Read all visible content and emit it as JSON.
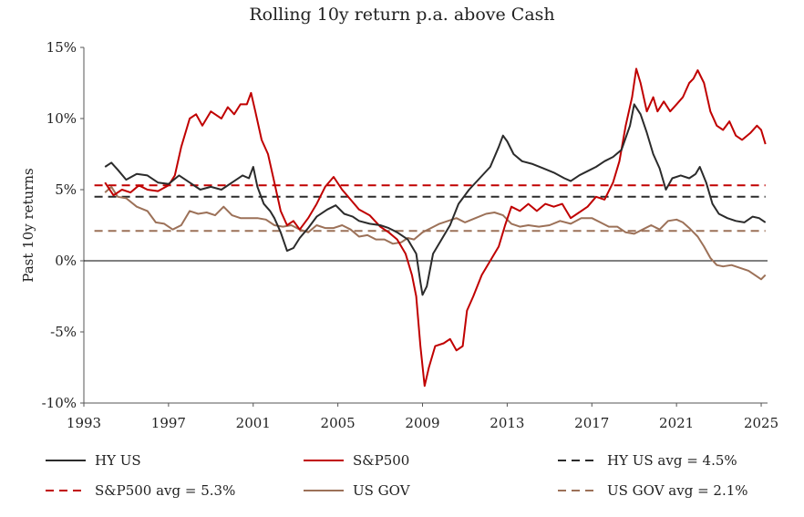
{
  "chart_data": {
    "type": "line",
    "title": "Rolling 10y return p.a. above Cash",
    "xlabel": "",
    "ylabel": "Past 10y returns",
    "xlim": [
      1993,
      2025.3
    ],
    "ylim": [
      -10,
      15
    ],
    "x_ticks": [
      1993,
      1997,
      2001,
      2005,
      2009,
      2013,
      2017,
      2021,
      2025
    ],
    "x_tick_labels": [
      "1993",
      "1997",
      "2001",
      "2005",
      "2009",
      "2013",
      "2017",
      "2021",
      "2025"
    ],
    "y_ticks": [
      -10,
      -5,
      0,
      5,
      10,
      15
    ],
    "y_tick_labels": [
      "-10%",
      "-5%",
      "0%",
      "5%",
      "10%",
      "15%"
    ],
    "grid": false,
    "legend": "bottom",
    "colors": {
      "hy_us": "#2b2b2b",
      "sp500": "#c00000",
      "us_gov": "#9c7158",
      "zero_line": "#000000",
      "axis": "#555555"
    },
    "series": [
      {
        "name": "HY US",
        "key": "hy_us",
        "style": "solid",
        "points": [
          [
            1994.0,
            6.6
          ],
          [
            1994.3,
            6.9
          ],
          [
            1994.6,
            6.4
          ],
          [
            1995.0,
            5.7
          ],
          [
            1995.5,
            6.1
          ],
          [
            1996.0,
            6.0
          ],
          [
            1996.5,
            5.5
          ],
          [
            1997.0,
            5.4
          ],
          [
            1997.5,
            6.0
          ],
          [
            1998.0,
            5.5
          ],
          [
            1998.5,
            5.0
          ],
          [
            1999.0,
            5.2
          ],
          [
            1999.5,
            5.0
          ],
          [
            2000.0,
            5.5
          ],
          [
            2000.5,
            6.0
          ],
          [
            2000.8,
            5.8
          ],
          [
            2001.0,
            6.6
          ],
          [
            2001.2,
            5.2
          ],
          [
            2001.5,
            4.0
          ],
          [
            2001.8,
            3.5
          ],
          [
            2002.0,
            3.0
          ],
          [
            2002.3,
            2.0
          ],
          [
            2002.6,
            0.7
          ],
          [
            2002.9,
            0.9
          ],
          [
            2003.2,
            1.6
          ],
          [
            2003.6,
            2.3
          ],
          [
            2004.0,
            3.1
          ],
          [
            2004.5,
            3.6
          ],
          [
            2004.9,
            3.9
          ],
          [
            2005.3,
            3.3
          ],
          [
            2005.7,
            3.1
          ],
          [
            2006.0,
            2.8
          ],
          [
            2006.5,
            2.6
          ],
          [
            2007.0,
            2.5
          ],
          [
            2007.4,
            2.3
          ],
          [
            2007.8,
            2.0
          ],
          [
            2008.3,
            1.5
          ],
          [
            2008.7,
            0.5
          ],
          [
            2008.9,
            -1.5
          ],
          [
            2009.0,
            -2.4
          ],
          [
            2009.2,
            -1.8
          ],
          [
            2009.5,
            0.5
          ],
          [
            2009.9,
            1.5
          ],
          [
            2010.3,
            2.5
          ],
          [
            2010.7,
            4.0
          ],
          [
            2011.2,
            5.0
          ],
          [
            2011.7,
            5.8
          ],
          [
            2012.2,
            6.6
          ],
          [
            2012.6,
            8.0
          ],
          [
            2012.8,
            8.8
          ],
          [
            2013.0,
            8.4
          ],
          [
            2013.3,
            7.5
          ],
          [
            2013.7,
            7.0
          ],
          [
            2014.2,
            6.8
          ],
          [
            2014.7,
            6.5
          ],
          [
            2015.2,
            6.2
          ],
          [
            2015.7,
            5.8
          ],
          [
            2016.0,
            5.6
          ],
          [
            2016.4,
            6.0
          ],
          [
            2016.8,
            6.3
          ],
          [
            2017.2,
            6.6
          ],
          [
            2017.6,
            7.0
          ],
          [
            2018.0,
            7.3
          ],
          [
            2018.4,
            7.8
          ],
          [
            2018.8,
            9.5
          ],
          [
            2019.0,
            11.0
          ],
          [
            2019.3,
            10.3
          ],
          [
            2019.6,
            9.0
          ],
          [
            2019.9,
            7.5
          ],
          [
            2020.2,
            6.5
          ],
          [
            2020.5,
            5.0
          ],
          [
            2020.8,
            5.8
          ],
          [
            2021.2,
            6.0
          ],
          [
            2021.6,
            5.8
          ],
          [
            2021.9,
            6.1
          ],
          [
            2022.1,
            6.6
          ],
          [
            2022.4,
            5.5
          ],
          [
            2022.7,
            4.0
          ],
          [
            2023.0,
            3.3
          ],
          [
            2023.4,
            3.0
          ],
          [
            2023.8,
            2.8
          ],
          [
            2024.2,
            2.7
          ],
          [
            2024.6,
            3.1
          ],
          [
            2024.9,
            3.0
          ],
          [
            2025.2,
            2.7
          ]
        ]
      },
      {
        "name": "S&P500",
        "key": "sp500",
        "style": "solid",
        "points": [
          [
            1994.0,
            5.5
          ],
          [
            1994.4,
            4.6
          ],
          [
            1994.8,
            5.0
          ],
          [
            1995.2,
            4.8
          ],
          [
            1995.6,
            5.3
          ],
          [
            1996.0,
            5.0
          ],
          [
            1996.5,
            4.9
          ],
          [
            1997.0,
            5.3
          ],
          [
            1997.3,
            6.0
          ],
          [
            1997.6,
            8.0
          ],
          [
            1998.0,
            10.0
          ],
          [
            1998.3,
            10.3
          ],
          [
            1998.6,
            9.5
          ],
          [
            1999.0,
            10.5
          ],
          [
            1999.5,
            10.0
          ],
          [
            1999.8,
            10.8
          ],
          [
            2000.1,
            10.3
          ],
          [
            2000.4,
            11.0
          ],
          [
            2000.7,
            11.0
          ],
          [
            2000.9,
            11.8
          ],
          [
            2001.1,
            10.5
          ],
          [
            2001.4,
            8.5
          ],
          [
            2001.7,
            7.5
          ],
          [
            2002.0,
            5.5
          ],
          [
            2002.3,
            3.5
          ],
          [
            2002.6,
            2.5
          ],
          [
            2002.9,
            2.8
          ],
          [
            2003.2,
            2.2
          ],
          [
            2003.6,
            3.0
          ],
          [
            2004.0,
            4.0
          ],
          [
            2004.4,
            5.2
          ],
          [
            2004.8,
            5.9
          ],
          [
            2005.2,
            5.0
          ],
          [
            2005.6,
            4.3
          ],
          [
            2006.0,
            3.6
          ],
          [
            2006.5,
            3.2
          ],
          [
            2007.0,
            2.4
          ],
          [
            2007.4,
            2.0
          ],
          [
            2007.8,
            1.5
          ],
          [
            2008.2,
            0.5
          ],
          [
            2008.5,
            -1.0
          ],
          [
            2008.7,
            -2.5
          ],
          [
            2008.9,
            -6.0
          ],
          [
            2009.1,
            -8.8
          ],
          [
            2009.3,
            -7.5
          ],
          [
            2009.6,
            -6.0
          ],
          [
            2010.0,
            -5.8
          ],
          [
            2010.3,
            -5.5
          ],
          [
            2010.6,
            -6.3
          ],
          [
            2010.9,
            -6.0
          ],
          [
            2011.1,
            -3.5
          ],
          [
            2011.4,
            -2.5
          ],
          [
            2011.8,
            -1.0
          ],
          [
            2012.2,
            0.0
          ],
          [
            2012.6,
            1.0
          ],
          [
            2012.9,
            2.5
          ],
          [
            2013.2,
            3.8
          ],
          [
            2013.6,
            3.5
          ],
          [
            2014.0,
            4.0
          ],
          [
            2014.4,
            3.5
          ],
          [
            2014.8,
            4.0
          ],
          [
            2015.2,
            3.8
          ],
          [
            2015.6,
            4.0
          ],
          [
            2016.0,
            3.0
          ],
          [
            2016.4,
            3.4
          ],
          [
            2016.8,
            3.8
          ],
          [
            2017.2,
            4.5
          ],
          [
            2017.6,
            4.3
          ],
          [
            2018.0,
            5.5
          ],
          [
            2018.3,
            7.0
          ],
          [
            2018.6,
            9.5
          ],
          [
            2018.9,
            11.5
          ],
          [
            2019.1,
            13.5
          ],
          [
            2019.3,
            12.5
          ],
          [
            2019.6,
            10.5
          ],
          [
            2019.9,
            11.5
          ],
          [
            2020.1,
            10.5
          ],
          [
            2020.4,
            11.2
          ],
          [
            2020.7,
            10.5
          ],
          [
            2021.0,
            11.0
          ],
          [
            2021.3,
            11.5
          ],
          [
            2021.6,
            12.5
          ],
          [
            2021.8,
            12.8
          ],
          [
            2022.0,
            13.4
          ],
          [
            2022.3,
            12.5
          ],
          [
            2022.6,
            10.5
          ],
          [
            2022.9,
            9.5
          ],
          [
            2023.2,
            9.2
          ],
          [
            2023.5,
            9.8
          ],
          [
            2023.8,
            8.8
          ],
          [
            2024.1,
            8.5
          ],
          [
            2024.5,
            9.0
          ],
          [
            2024.8,
            9.5
          ],
          [
            2025.0,
            9.2
          ],
          [
            2025.2,
            8.2
          ]
        ]
      },
      {
        "name": "US GOV",
        "key": "us_gov",
        "style": "solid",
        "points": [
          [
            1994.0,
            4.8
          ],
          [
            1994.3,
            5.2
          ],
          [
            1994.6,
            4.5
          ],
          [
            1995.0,
            4.4
          ],
          [
            1995.5,
            3.8
          ],
          [
            1996.0,
            3.5
          ],
          [
            1996.4,
            2.7
          ],
          [
            1996.8,
            2.6
          ],
          [
            1997.2,
            2.2
          ],
          [
            1997.6,
            2.5
          ],
          [
            1998.0,
            3.5
          ],
          [
            1998.4,
            3.3
          ],
          [
            1998.8,
            3.4
          ],
          [
            1999.2,
            3.2
          ],
          [
            1999.6,
            3.8
          ],
          [
            2000.0,
            3.2
          ],
          [
            2000.4,
            3.0
          ],
          [
            2000.8,
            3.0
          ],
          [
            2001.2,
            3.0
          ],
          [
            2001.6,
            2.9
          ],
          [
            2002.0,
            2.5
          ],
          [
            2002.4,
            2.4
          ],
          [
            2002.8,
            2.5
          ],
          [
            2003.2,
            2.2
          ],
          [
            2003.6,
            2.0
          ],
          [
            2004.0,
            2.5
          ],
          [
            2004.4,
            2.3
          ],
          [
            2004.8,
            2.3
          ],
          [
            2005.2,
            2.5
          ],
          [
            2005.6,
            2.2
          ],
          [
            2006.0,
            1.7
          ],
          [
            2006.4,
            1.8
          ],
          [
            2006.8,
            1.5
          ],
          [
            2007.2,
            1.5
          ],
          [
            2007.6,
            1.2
          ],
          [
            2008.0,
            1.3
          ],
          [
            2008.3,
            1.6
          ],
          [
            2008.6,
            1.5
          ],
          [
            2009.0,
            2.0
          ],
          [
            2009.4,
            2.3
          ],
          [
            2009.8,
            2.6
          ],
          [
            2010.2,
            2.8
          ],
          [
            2010.6,
            3.0
          ],
          [
            2011.0,
            2.7
          ],
          [
            2011.5,
            3.0
          ],
          [
            2012.0,
            3.3
          ],
          [
            2012.4,
            3.4
          ],
          [
            2012.8,
            3.2
          ],
          [
            2013.2,
            2.6
          ],
          [
            2013.6,
            2.4
          ],
          [
            2014.0,
            2.5
          ],
          [
            2014.5,
            2.4
          ],
          [
            2015.0,
            2.5
          ],
          [
            2015.5,
            2.8
          ],
          [
            2016.0,
            2.6
          ],
          [
            2016.5,
            3.0
          ],
          [
            2017.0,
            3.0
          ],
          [
            2017.4,
            2.7
          ],
          [
            2017.8,
            2.4
          ],
          [
            2018.2,
            2.4
          ],
          [
            2018.6,
            2.0
          ],
          [
            2019.0,
            1.9
          ],
          [
            2019.4,
            2.2
          ],
          [
            2019.8,
            2.5
          ],
          [
            2020.2,
            2.2
          ],
          [
            2020.6,
            2.8
          ],
          [
            2021.0,
            2.9
          ],
          [
            2021.3,
            2.7
          ],
          [
            2021.6,
            2.3
          ],
          [
            2022.0,
            1.7
          ],
          [
            2022.3,
            1.0
          ],
          [
            2022.6,
            0.2
          ],
          [
            2022.9,
            -0.3
          ],
          [
            2023.2,
            -0.4
          ],
          [
            2023.6,
            -0.3
          ],
          [
            2024.0,
            -0.5
          ],
          [
            2024.4,
            -0.7
          ],
          [
            2024.8,
            -1.1
          ],
          [
            2025.0,
            -1.3
          ],
          [
            2025.2,
            -1.0
          ]
        ]
      },
      {
        "name": "HY US avg = 4.5%",
        "key": "hy_us",
        "style": "dashed",
        "points": [
          [
            1993.5,
            4.5
          ],
          [
            2025.2,
            4.5
          ]
        ]
      },
      {
        "name": "S&P500 avg = 5.3%",
        "key": "sp500",
        "style": "dashed",
        "points": [
          [
            1993.5,
            5.3
          ],
          [
            2025.2,
            5.3
          ]
        ]
      },
      {
        "name": "US GOV avg = 2.1%",
        "key": "us_gov",
        "style": "dashed",
        "points": [
          [
            1993.5,
            2.1
          ],
          [
            2025.2,
            2.1
          ]
        ]
      }
    ],
    "zero_line": 0
  }
}
